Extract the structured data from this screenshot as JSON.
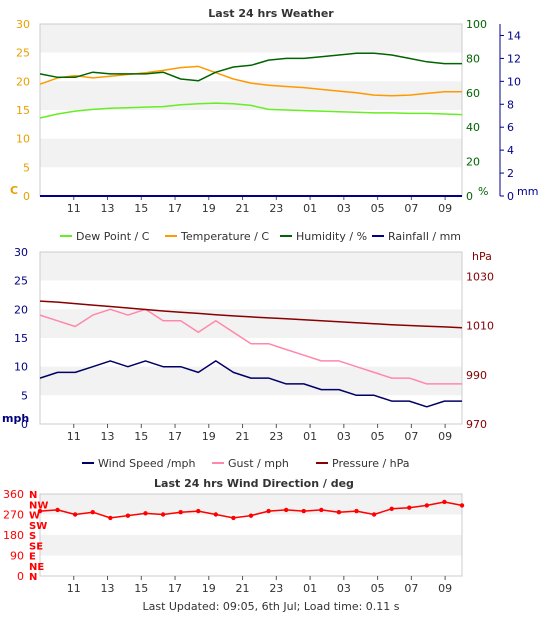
{
  "chart_data": [
    {
      "type": "line",
      "title": "Last 24 hrs Weather",
      "x_ticks": [
        "11",
        "13",
        "15",
        "17",
        "19",
        "21",
        "23",
        "01",
        "03",
        "05",
        "07",
        "09"
      ],
      "axes": {
        "left": {
          "label": "C",
          "ylim": [
            0,
            30
          ],
          "ticks": [
            "0",
            "5",
            "10",
            "15",
            "20",
            "25",
            "30"
          ],
          "color": "#e8a000"
        },
        "right1": {
          "label": "%",
          "ylim": [
            0,
            100
          ],
          "ticks": [
            "0",
            "20",
            "40",
            "60",
            "80",
            "100"
          ],
          "color": "#006400"
        },
        "right2": {
          "label": "mm",
          "ylim": [
            0,
            15
          ],
          "ticks": [
            "0",
            "2",
            "4",
            "6",
            "8",
            "10",
            "12",
            "14"
          ],
          "color": "#00008b"
        }
      },
      "series": [
        {
          "name": "Dew Point / C",
          "color": "#66ee22",
          "axis": "left",
          "values": [
            13.6,
            14.3,
            14.8,
            15.1,
            15.3,
            15.4,
            15.5,
            15.6,
            15.9,
            16.1,
            16.2,
            16.1,
            15.8,
            15.1,
            15.0,
            14.9,
            14.8,
            14.7,
            14.6,
            14.5,
            14.5,
            14.4,
            14.4,
            14.3,
            14.2
          ]
        },
        {
          "name": "Temperature / C",
          "color": "#ff9900",
          "axis": "left",
          "values": [
            19.5,
            20.6,
            21.0,
            20.6,
            20.9,
            21.2,
            21.5,
            21.9,
            22.4,
            22.6,
            21.5,
            20.4,
            19.7,
            19.3,
            19.1,
            18.9,
            18.6,
            18.3,
            18.0,
            17.6,
            17.5,
            17.6,
            17.9,
            18.2,
            18.2
          ]
        },
        {
          "name": "Humidity / %",
          "color": "#006400",
          "axis": "right1",
          "values": [
            71,
            69,
            69,
            72,
            71,
            71,
            71,
            72,
            68,
            67,
            72,
            75,
            76,
            79,
            80,
            80,
            81,
            82,
            83,
            83,
            82,
            80,
            78,
            77,
            77
          ]
        },
        {
          "name": "Rainfall / mm",
          "color": "#00008b",
          "axis": "right2",
          "values": [
            0,
            0,
            0,
            0,
            0,
            0,
            0,
            0,
            0,
            0,
            0,
            0,
            0,
            0,
            0,
            0,
            0,
            0,
            0,
            0,
            0,
            0,
            0,
            0,
            0
          ]
        }
      ]
    },
    {
      "type": "line",
      "x_ticks": [
        "11",
        "13",
        "15",
        "17",
        "19",
        "21",
        "23",
        "01",
        "03",
        "05",
        "07",
        "09"
      ],
      "axes": {
        "left": {
          "label": "mph",
          "ylim": [
            0,
            30
          ],
          "ticks": [
            "0",
            "5",
            "10",
            "15",
            "20",
            "25",
            "30"
          ],
          "color": "#000080"
        },
        "right": {
          "label": "hPa",
          "ylim": [
            970,
            1040
          ],
          "ticks": [
            "970",
            "990",
            "1010",
            "1030"
          ],
          "color": "#800000"
        }
      },
      "series": [
        {
          "name": "Wind Speed /mph",
          "color": "#000066",
          "axis": "left",
          "values": [
            8,
            9,
            9,
            10,
            11,
            10,
            11,
            10,
            10,
            9,
            11,
            9,
            8,
            8,
            7,
            7,
            6,
            6,
            5,
            5,
            4,
            4,
            3,
            4,
            4
          ]
        },
        {
          "name": "Gust / mph",
          "color": "#ff88aa",
          "axis": "left",
          "values": [
            19,
            18,
            17,
            19,
            20,
            19,
            20,
            18,
            18,
            16,
            18,
            16,
            14,
            14,
            13,
            12,
            11,
            11,
            10,
            9,
            8,
            8,
            7,
            7,
            7
          ]
        },
        {
          "name": "Pressure / hPa",
          "color": "#880000",
          "axis": "right",
          "values": [
            1020,
            1019.6,
            1019,
            1018.4,
            1017.8,
            1017.2,
            1016.6,
            1016,
            1015.5,
            1015,
            1014.5,
            1014,
            1013.6,
            1013.2,
            1012.8,
            1012.4,
            1012,
            1011.6,
            1011.2,
            1010.8,
            1010.4,
            1010.1,
            1009.8,
            1009.5,
            1009.2
          ]
        }
      ]
    },
    {
      "type": "scatter",
      "title": "Last 24 hrs Wind Direction / deg",
      "x_ticks": [
        "11",
        "13",
        "15",
        "17",
        "19",
        "21",
        "23",
        "01",
        "03",
        "05",
        "07",
        "09"
      ],
      "axes": {
        "left": {
          "ylim": [
            0,
            360
          ],
          "ticks": [
            "0",
            "90",
            "180",
            "270",
            "360"
          ],
          "color": "#ff0000"
        },
        "compass": {
          "ticks": [
            "N",
            "NE",
            "E",
            "SE",
            "S",
            "SW",
            "W",
            "NW",
            "N"
          ],
          "color": "#ff0000"
        }
      },
      "series": [
        {
          "name": "Wind Direction",
          "color": "#ff0000",
          "values": [
            285,
            290,
            270,
            280,
            255,
            265,
            275,
            270,
            280,
            285,
            270,
            255,
            265,
            285,
            290,
            285,
            290,
            280,
            285,
            270,
            295,
            300,
            310,
            325,
            310
          ]
        }
      ]
    }
  ],
  "footer": {
    "text": "Last Updated: 09:05, 6th Jul; Load time: 0.11 s"
  }
}
